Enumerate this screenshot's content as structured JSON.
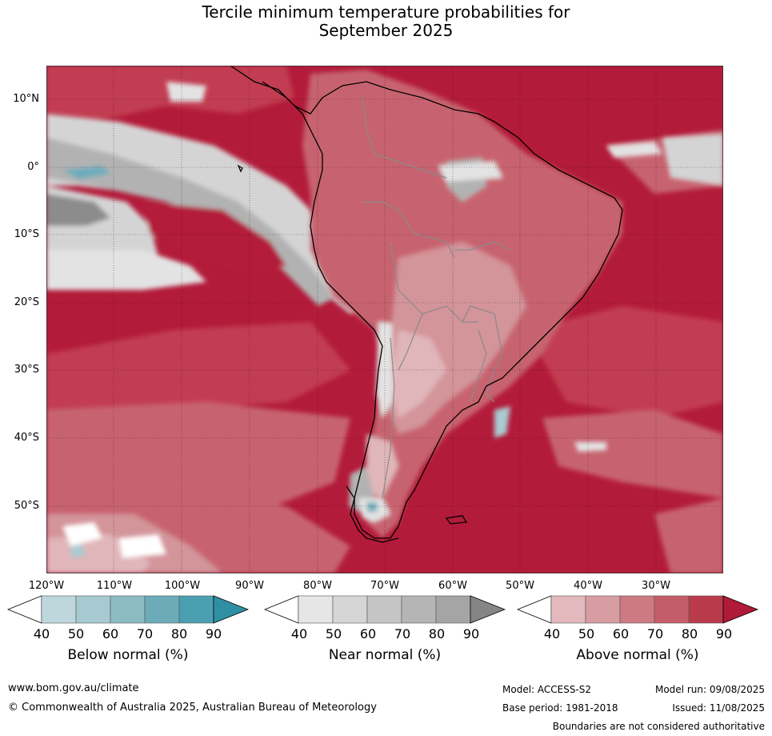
{
  "title": {
    "line1": "Tercile minimum temperature probabilities for",
    "line2": "September 2025"
  },
  "map": {
    "lat_labels": [
      "10°N",
      "0°",
      "10°S",
      "20°S",
      "30°S",
      "40°S",
      "50°S"
    ],
    "lon_labels": [
      "120°W",
      "110°W",
      "100°W",
      "90°W",
      "80°W",
      "70°W",
      "60°W",
      "50°W",
      "40°W",
      "30°W"
    ],
    "region": "South America and adjacent oceans",
    "dominant_category": "Above normal",
    "colors": {
      "ocean_above_high": "#b31b3a",
      "above_80": "#c23c51",
      "above_70": "#c7636f",
      "above_60": "#d3949a",
      "above_50": "#e0b6ba",
      "near_50": "#e3e3e3",
      "near_60": "#d4d4d4",
      "near_70": "#c2c2c2",
      "near_80": "#b2b2b2",
      "near_90": "#8c8c8c",
      "below_50": "#a9ccd2",
      "below_70": "#6dadbb",
      "coast": "#000000",
      "borders": "#8a8a8a"
    }
  },
  "colorbars": [
    {
      "title": "Below normal (%)",
      "ticks": [
        "40",
        "50",
        "60",
        "70",
        "80",
        "90"
      ],
      "colors": [
        "#ffffff",
        "#bdd7dc",
        "#a6cad0",
        "#8cbbc4",
        "#6cacb9",
        "#4aa0b1",
        "#3090a3"
      ]
    },
    {
      "title": "Near normal (%)",
      "ticks": [
        "40",
        "50",
        "60",
        "70",
        "80",
        "90"
      ],
      "colors": [
        "#ffffff",
        "#e6e6e6",
        "#d6d6d6",
        "#c5c5c5",
        "#b5b5b5",
        "#a5a5a5",
        "#858585"
      ]
    },
    {
      "title": "Above normal (%)",
      "ticks": [
        "40",
        "50",
        "60",
        "70",
        "80",
        "90"
      ],
      "colors": [
        "#ffffff",
        "#e3b9bd",
        "#d89da2",
        "#cd7a82",
        "#c45d68",
        "#b93a4b",
        "#ae1a37"
      ]
    }
  ],
  "footer": {
    "website": "www.bom.gov.au/climate",
    "copyright": "© Commonwealth of Australia 2025, Australian Bureau of Meteorology",
    "model": "Model: ACCESS-S2",
    "base_period": "Base period: 1981-2018",
    "model_run": "Model run: 09/08/2025",
    "issued": "Issued: 11/08/2025",
    "disclaimer": "Boundaries are not considered authoritative"
  }
}
